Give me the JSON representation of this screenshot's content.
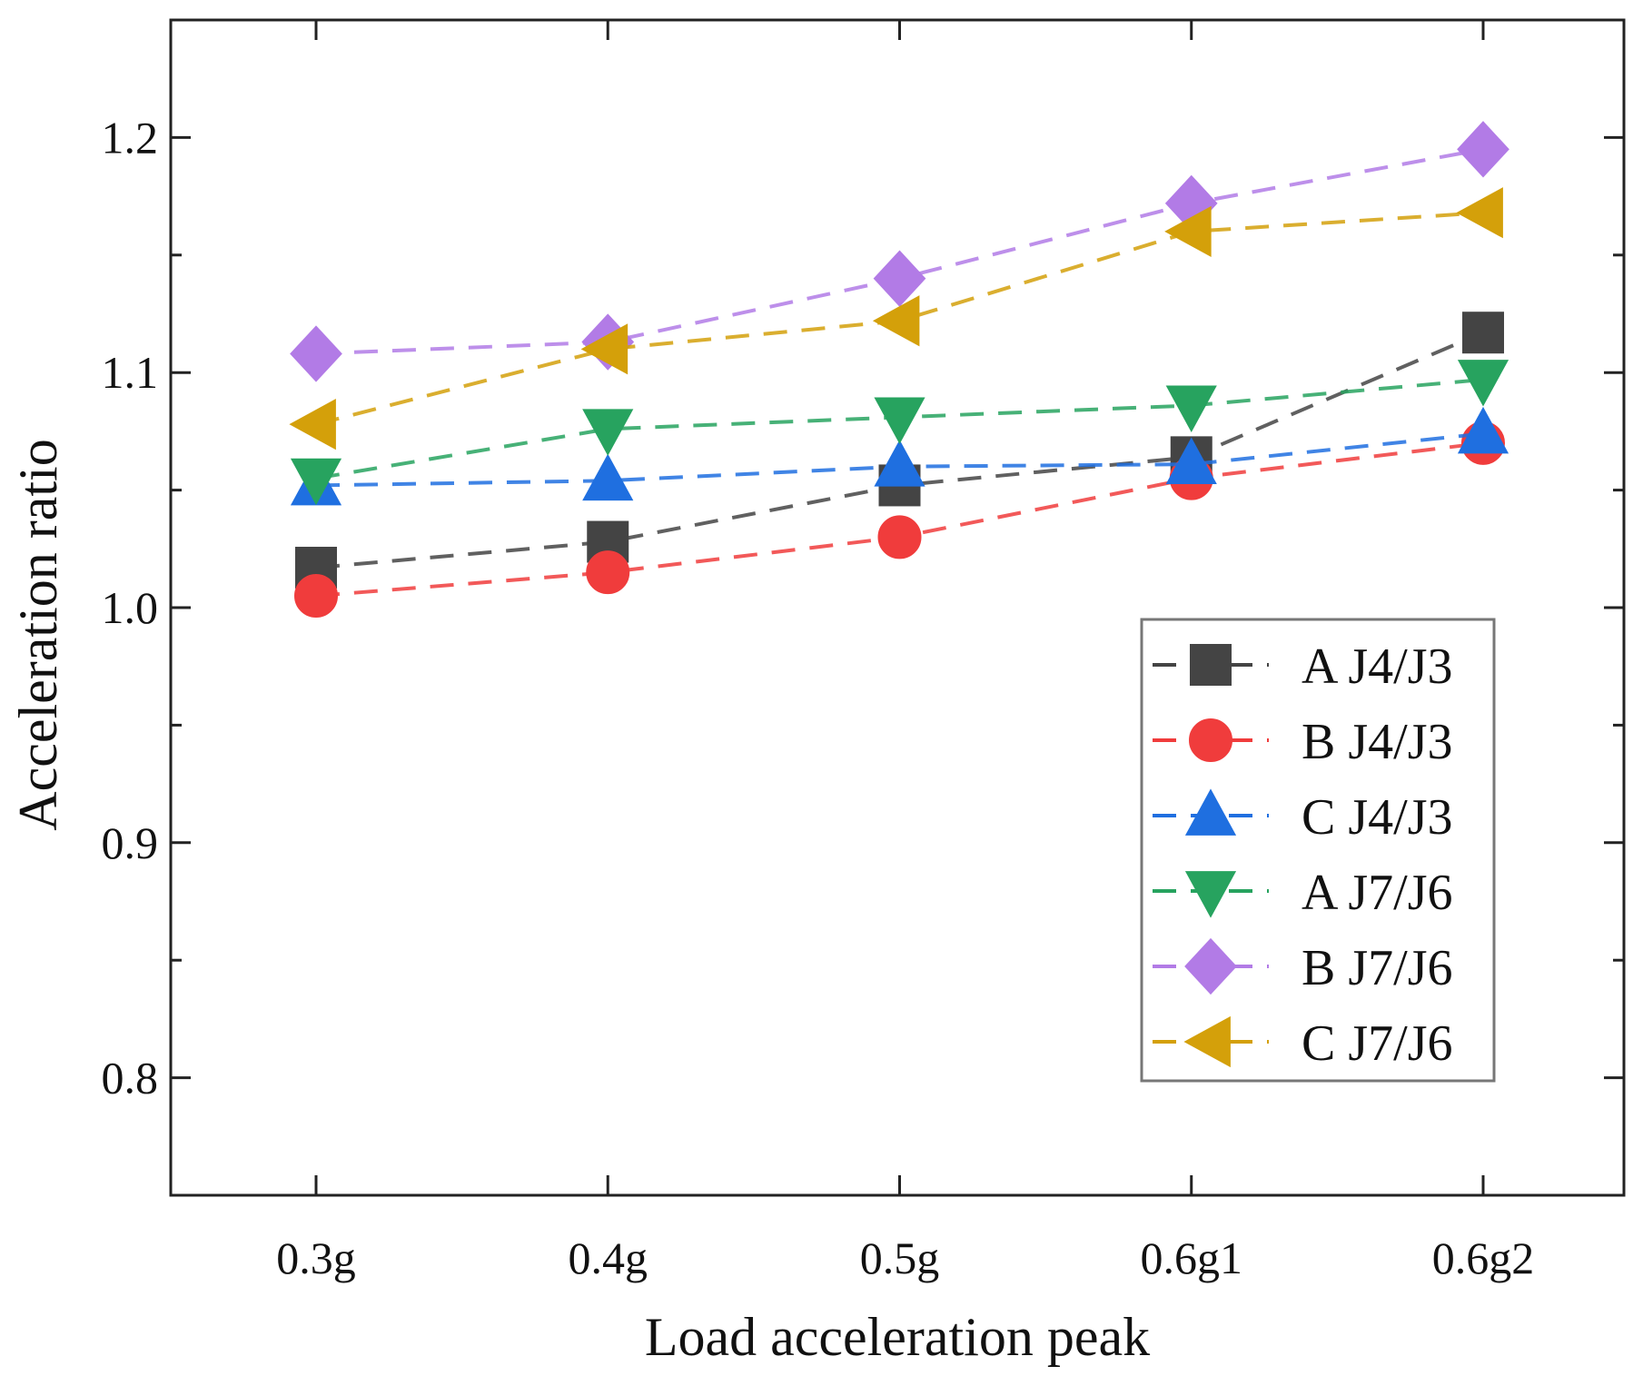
{
  "chart_data": {
    "type": "line",
    "title": "",
    "xlabel": "Load acceleration peak",
    "ylabel": "Acceleration ratio",
    "categories": [
      "0.3g",
      "0.4g",
      "0.5g",
      "0.6g1",
      "0.6g2"
    ],
    "ylim": [
      0.75,
      1.25
    ],
    "yticks": [
      0.8,
      0.9,
      1.0,
      1.1,
      1.2
    ],
    "ytick_labels": [
      "0.8",
      "0.9",
      "1.0",
      "1.1",
      "1.2"
    ],
    "grid": false,
    "legend_position": "lower-right",
    "series": [
      {
        "name": "A J4/J3",
        "marker": "square",
        "color": "#444444",
        "values": [
          1.017,
          1.028,
          1.052,
          1.064,
          1.117
        ]
      },
      {
        "name": "B J4/J3",
        "marker": "circle",
        "color": "#f03c3c",
        "values": [
          1.005,
          1.015,
          1.03,
          1.055,
          1.07
        ]
      },
      {
        "name": "C J4/J3",
        "marker": "triangle-up",
        "color": "#1f6fe0",
        "values": [
          1.052,
          1.054,
          1.06,
          1.061,
          1.074
        ]
      },
      {
        "name": "A J7/J6",
        "marker": "triangle-down",
        "color": "#27a35f",
        "values": [
          1.055,
          1.076,
          1.081,
          1.086,
          1.097
        ]
      },
      {
        "name": "B J7/J6",
        "marker": "diamond",
        "color": "#b27be6",
        "values": [
          1.108,
          1.113,
          1.14,
          1.172,
          1.195
        ]
      },
      {
        "name": "C J7/J6",
        "marker": "triangle-left",
        "color": "#d4a00a",
        "values": [
          1.078,
          1.11,
          1.122,
          1.16,
          1.168
        ]
      }
    ]
  }
}
